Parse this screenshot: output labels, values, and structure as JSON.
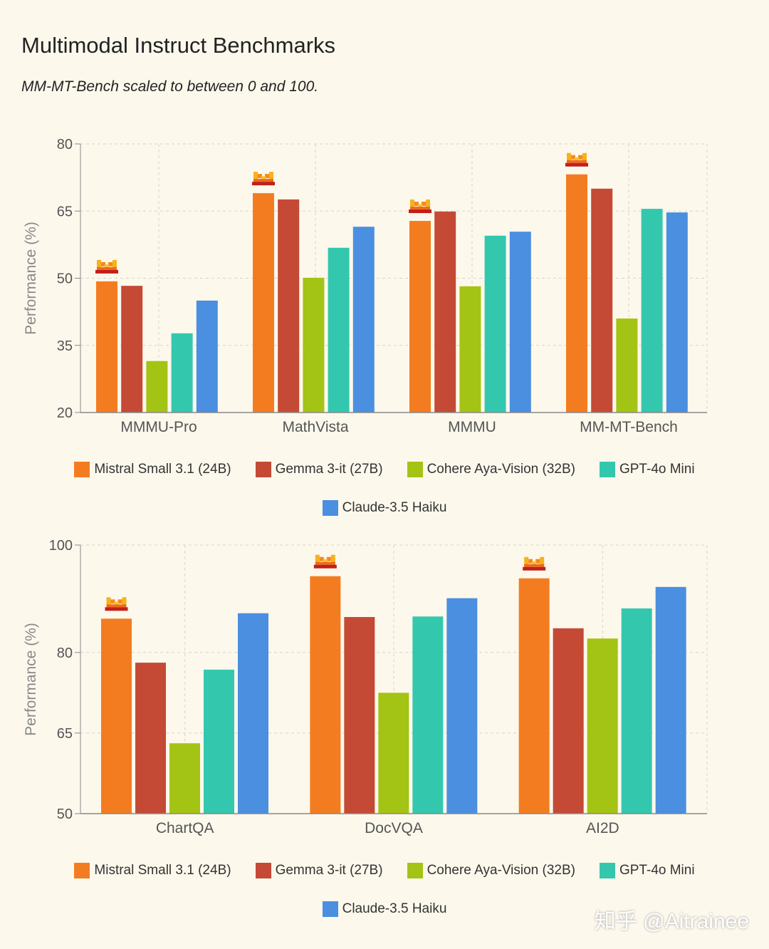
{
  "title": "Multimodal Instruct Benchmarks",
  "subtitle": "MM-MT-Bench scaled to between 0 and 100.",
  "watermark": "知乎 @Aitrainee",
  "colors": {
    "Mistral Small 3.1 (24B)": "#f47c20",
    "Gemma 3-it (27B)": "#c44a36",
    "Cohere Aya-Vision (32B)": "#a3c414",
    "GPT-4o Mini": "#33c8ae",
    "Claude-3.5 Haiku": "#4a8fe0"
  },
  "legend": [
    "Mistral Small 3.1 (24B)",
    "Gemma 3-it (27B)",
    "Cohere Aya-Vision (32B)",
    "GPT-4o Mini",
    "Claude-3.5 Haiku"
  ],
  "chart_data": [
    {
      "type": "bar",
      "ylabel": "Performance (%)",
      "ylim": [
        20,
        80
      ],
      "yticks": [
        20,
        35,
        50,
        65,
        80
      ],
      "grid": true,
      "legend_position": "bottom",
      "categories": [
        "MMMU-Pro",
        "MathVista",
        "MMMU",
        "MM-MT-Bench"
      ],
      "series": [
        {
          "name": "Mistral Small 3.1 (24B)",
          "values": [
            49.3,
            69.0,
            62.8,
            73.2
          ]
        },
        {
          "name": "Gemma 3-it (27B)",
          "values": [
            48.3,
            67.6,
            64.9,
            70.0
          ]
        },
        {
          "name": "Cohere Aya-Vision (32B)",
          "values": [
            31.5,
            50.1,
            48.2,
            41.0
          ]
        },
        {
          "name": "GPT-4o Mini",
          "values": [
            37.7,
            56.8,
            59.5,
            65.5
          ]
        },
        {
          "name": "Claude-3.5 Haiku",
          "values": [
            45.0,
            61.5,
            60.4,
            64.7
          ]
        }
      ]
    },
    {
      "type": "bar",
      "ylabel": "Performance (%)",
      "ylim": [
        50,
        100
      ],
      "yticks": [
        50,
        65,
        80,
        100
      ],
      "grid": true,
      "legend_position": "bottom",
      "categories": [
        "ChartQA",
        "DocVQA",
        "AI2D"
      ],
      "series": [
        {
          "name": "Mistral Small 3.1 (24B)",
          "values": [
            86.3,
            94.2,
            93.8
          ]
        },
        {
          "name": "Gemma 3-it (27B)",
          "values": [
            78.1,
            86.6,
            84.5
          ]
        },
        {
          "name": "Cohere Aya-Vision (32B)",
          "values": [
            63.1,
            72.5,
            82.6
          ]
        },
        {
          "name": "GPT-4o Mini",
          "values": [
            76.8,
            86.7,
            88.2
          ]
        },
        {
          "name": "Claude-3.5 Haiku",
          "values": [
            87.3,
            90.1,
            92.2
          ]
        }
      ]
    }
  ]
}
